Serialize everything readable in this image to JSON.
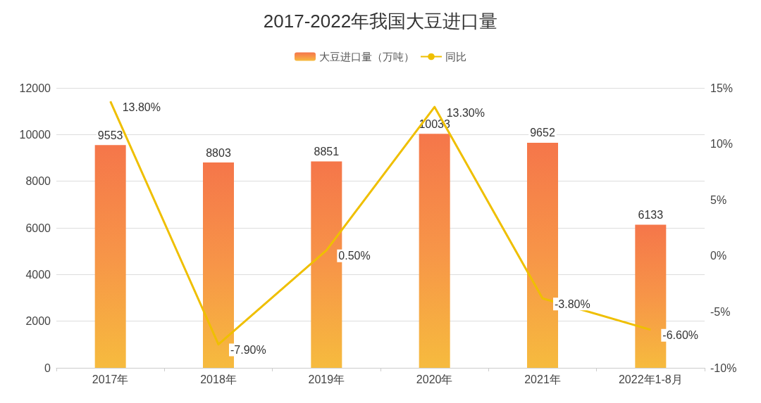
{
  "chart_data": {
    "type": "bar",
    "title": "2017-2022年我国大豆进口量",
    "categories": [
      "2017年",
      "2018年",
      "2019年",
      "2020年",
      "2021年",
      "2022年1-8月"
    ],
    "series": [
      {
        "name": "大豆进口量（万吨）",
        "color": "#f79548",
        "values": [
          9553,
          8803,
          8851,
          10033,
          9652,
          6133
        ],
        "value_labels": [
          "9553",
          "8803",
          "8851",
          "10033",
          "9652",
          "6133"
        ]
      },
      {
        "name": "同比",
        "type": "line",
        "axis": "y2",
        "color": "#efbf00",
        "marker": "none",
        "values": [
          13.8,
          -7.9,
          0.5,
          13.3,
          -3.8,
          -6.6
        ],
        "value_labels": [
          "13.80%",
          "-7.90%",
          "0.50%",
          "13.30%",
          "-3.80%",
          "-6.60%"
        ]
      }
    ],
    "ylim": [
      0,
      12000
    ],
    "yticks": [
      0,
      2000,
      4000,
      6000,
      8000,
      10000,
      12000
    ],
    "y2lim": [
      -10,
      15
    ],
    "y2ticks": [
      {
        "value": -10,
        "label": "-10%"
      },
      {
        "value": -5,
        "label": "-5%"
      },
      {
        "value": 0,
        "label": "0%"
      },
      {
        "value": 5,
        "label": "5%"
      },
      {
        "value": 10,
        "label": "10%"
      },
      {
        "value": 15,
        "label": "15%"
      }
    ],
    "grid": "y",
    "legend": "top"
  }
}
